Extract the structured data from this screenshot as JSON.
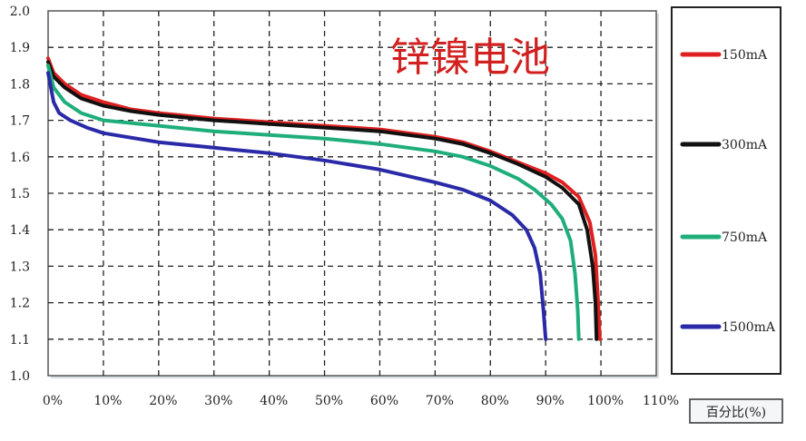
{
  "chart_data": {
    "type": "line",
    "title": "锌镍电池",
    "xlabel": "百分比(%)",
    "ylabel": "",
    "xlim": [
      0,
      110
    ],
    "ylim": [
      1.0,
      2.0
    ],
    "x_ticks": [
      "0%",
      "10%",
      "20%",
      "30%",
      "40%",
      "50%",
      "60%",
      "70%",
      "80%",
      "90%",
      "100%",
      "110%"
    ],
    "y_ticks": [
      "1.0",
      "1.1",
      "1.2",
      "1.3",
      "1.4",
      "1.5",
      "1.6",
      "1.7",
      "1.8",
      "1.9",
      "2.0"
    ],
    "grid": true,
    "legend_position": "right",
    "series": [
      {
        "name": "150mA",
        "color": "#e02020",
        "points": [
          [
            0,
            1.87
          ],
          [
            1,
            1.83
          ],
          [
            3,
            1.8
          ],
          [
            6,
            1.77
          ],
          [
            10,
            1.75
          ],
          [
            15,
            1.73
          ],
          [
            20,
            1.72
          ],
          [
            30,
            1.705
          ],
          [
            40,
            1.695
          ],
          [
            50,
            1.685
          ],
          [
            60,
            1.675
          ],
          [
            70,
            1.655
          ],
          [
            75,
            1.64
          ],
          [
            80,
            1.615
          ],
          [
            85,
            1.585
          ],
          [
            90,
            1.555
          ],
          [
            93,
            1.53
          ],
          [
            96,
            1.49
          ],
          [
            98,
            1.42
          ],
          [
            99,
            1.33
          ],
          [
            99.5,
            1.2
          ],
          [
            99.8,
            1.1
          ]
        ]
      },
      {
        "name": "300mA",
        "color": "#111111",
        "points": [
          [
            0,
            1.86
          ],
          [
            1,
            1.82
          ],
          [
            3,
            1.79
          ],
          [
            6,
            1.76
          ],
          [
            10,
            1.74
          ],
          [
            15,
            1.725
          ],
          [
            20,
            1.715
          ],
          [
            30,
            1.7
          ],
          [
            40,
            1.69
          ],
          [
            50,
            1.68
          ],
          [
            60,
            1.67
          ],
          [
            70,
            1.65
          ],
          [
            75,
            1.635
          ],
          [
            80,
            1.61
          ],
          [
            85,
            1.58
          ],
          [
            90,
            1.545
          ],
          [
            93,
            1.515
          ],
          [
            96,
            1.47
          ],
          [
            97.5,
            1.4
          ],
          [
            98.5,
            1.3
          ],
          [
            99,
            1.2
          ],
          [
            99.2,
            1.1
          ]
        ]
      },
      {
        "name": "750mA",
        "color": "#1fae7a",
        "points": [
          [
            0,
            1.85
          ],
          [
            1,
            1.79
          ],
          [
            3,
            1.75
          ],
          [
            6,
            1.72
          ],
          [
            10,
            1.7
          ],
          [
            20,
            1.685
          ],
          [
            30,
            1.67
          ],
          [
            40,
            1.66
          ],
          [
            50,
            1.65
          ],
          [
            60,
            1.635
          ],
          [
            70,
            1.615
          ],
          [
            75,
            1.6
          ],
          [
            80,
            1.575
          ],
          [
            85,
            1.54
          ],
          [
            88,
            1.51
          ],
          [
            91,
            1.47
          ],
          [
            93,
            1.43
          ],
          [
            94.5,
            1.37
          ],
          [
            95.3,
            1.28
          ],
          [
            95.8,
            1.18
          ],
          [
            96,
            1.1
          ]
        ]
      },
      {
        "name": "1500mA",
        "color": "#2a2aa8",
        "points": [
          [
            0,
            1.83
          ],
          [
            1,
            1.75
          ],
          [
            2,
            1.72
          ],
          [
            4,
            1.7
          ],
          [
            7,
            1.68
          ],
          [
            10,
            1.665
          ],
          [
            20,
            1.64
          ],
          [
            30,
            1.625
          ],
          [
            40,
            1.61
          ],
          [
            50,
            1.59
          ],
          [
            60,
            1.565
          ],
          [
            70,
            1.53
          ],
          [
            75,
            1.51
          ],
          [
            80,
            1.48
          ],
          [
            84,
            1.44
          ],
          [
            86.5,
            1.4
          ],
          [
            88,
            1.35
          ],
          [
            89,
            1.28
          ],
          [
            89.6,
            1.18
          ],
          [
            90,
            1.1
          ]
        ]
      }
    ]
  }
}
